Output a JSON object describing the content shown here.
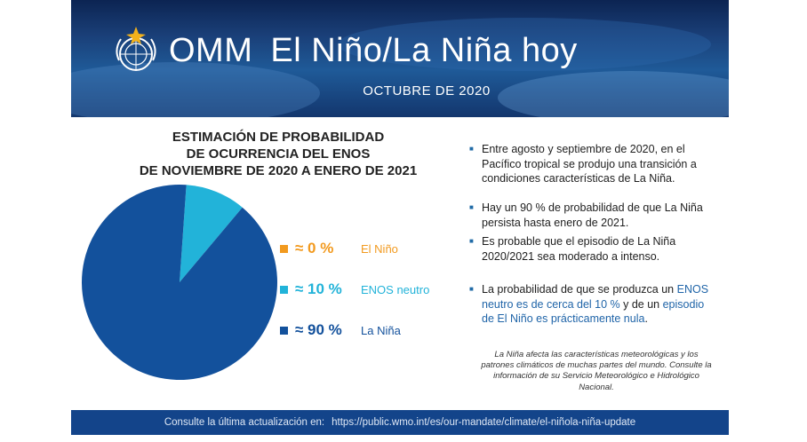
{
  "header": {
    "org": "OMM",
    "title": "El Niño/La Niña hoy",
    "date": "OCTUBRE DE 2020"
  },
  "chart_data": {
    "type": "pie",
    "title_lines": [
      "ESTIMACIÓN DE PROBABILIDAD",
      "DE OCURRENCIA DEL ENOS",
      "DE NOVIEMBRE DE 2020 A ENERO DE 2021"
    ],
    "slices": [
      {
        "name": "El Niño",
        "label": "≈ 0 %",
        "value": 0,
        "color": "#f29a1f"
      },
      {
        "name": "ENOS neutro",
        "label": "≈ 10 %",
        "value": 10,
        "color": "#22b3d9"
      },
      {
        "name": "La Niña",
        "label": "≈ 90 %",
        "value": 90,
        "color": "#13519c"
      }
    ]
  },
  "bullets": [
    {
      "parts": [
        {
          "text": "Entre agosto y septiembre de 2020, en el Pacífico tropical se produjo una transición a condiciones características de La Niña."
        }
      ]
    },
    {
      "parts": [
        {
          "text": "Hay un 90 % de probabilidad de que La Niña persista hasta enero de 2021."
        }
      ]
    },
    {
      "parts": [
        {
          "text": "Es probable que el episodio de La Niña 2020/2021 sea moderado a intenso."
        }
      ]
    },
    {
      "parts": [
        {
          "text": "La probabilidad de que se produzca un "
        },
        {
          "text": "ENOS neutro es de cerca del 10 %",
          "hl": true
        },
        {
          "text": " y de un "
        },
        {
          "text": "episodio de El Niño es prácticamente nula",
          "hl": true
        },
        {
          "text": "."
        }
      ]
    }
  ],
  "note": "La Niña afecta las características meteorológicas y los patrones climáticos de muchas partes del mundo. Consulte la información de su Servicio Meteorológico e Hidrológico Nacional.",
  "footer": {
    "label": "Consulte la última actualización en:",
    "url": "https://public.wmo.int/es/our-mandate/climate/el-niñola-niña-update"
  },
  "colors": {
    "highlight": "#1f64a8",
    "bullet": "#1f6aa6",
    "footer": "#13448a"
  }
}
